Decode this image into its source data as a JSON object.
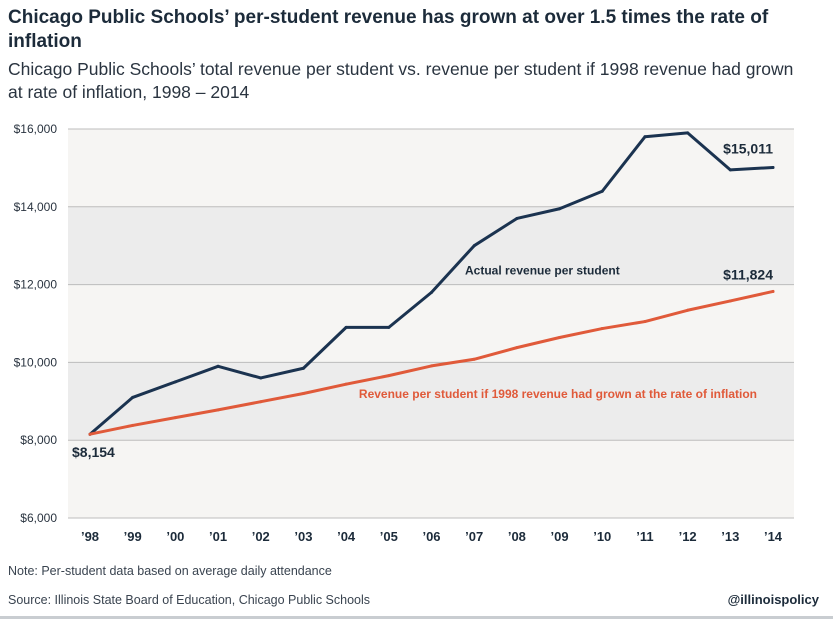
{
  "header": {
    "title": "Chicago Public Schools’ per-student revenue has grown at over 1.5 times the rate of inflation",
    "subtitle": "Chicago Public Schools’ total revenue per student vs. revenue per student if 1998 revenue had grown at rate of inflation, 1998 – 2014"
  },
  "footer": {
    "note": "Note: Per-student data based on average daily attendance",
    "source": "Source: Illinois State Board of Education, Chicago Public Schools",
    "handle": "@illinoispolicy"
  },
  "colors": {
    "actual": "#1b3350",
    "inflation": "#e05a3a",
    "band": "#ececec",
    "band_light": "#f6f5f3",
    "grid": "#bdbdbd"
  },
  "chart_data": {
    "type": "line",
    "title": "Chicago Public Schools’ per-student revenue has grown at over 1.5 times the rate of inflation",
    "xlabel": "",
    "ylabel": "",
    "ylim": [
      6000,
      16000
    ],
    "yticks": [
      6000,
      8000,
      10000,
      12000,
      14000,
      16000
    ],
    "ytick_labels": [
      "$6,000",
      "$8,000",
      "$10,000",
      "$12,000",
      "$14,000",
      "$16,000"
    ],
    "x": [
      1998,
      1999,
      2000,
      2001,
      2002,
      2003,
      2004,
      2005,
      2006,
      2007,
      2008,
      2009,
      2010,
      2011,
      2012,
      2013,
      2014
    ],
    "xtick_labels": [
      "’98",
      "’99",
      "’00",
      "’01",
      "’02",
      "’03",
      "’04",
      "’05",
      "’06",
      "’07",
      "’08",
      "’09",
      "’10",
      "’11",
      "’12",
      "’13",
      "’14"
    ],
    "grid": true,
    "series": [
      {
        "name": "Actual revenue per student",
        "values": [
          8154,
          9100,
          9500,
          9900,
          9600,
          9850,
          10900,
          10900,
          11800,
          13000,
          13700,
          13950,
          14400,
          15800,
          15900,
          14950,
          15011
        ]
      },
      {
        "name": "Revenue per student if 1998 revenue had grown at the rate of inflation",
        "values": [
          8154,
          8380,
          8580,
          8780,
          8990,
          9200,
          9440,
          9660,
          9910,
          10080,
          10380,
          10640,
          10870,
          11050,
          11340,
          11580,
          11824
        ]
      }
    ],
    "annotations": {
      "start": "$8,154",
      "end_actual": "$15,011",
      "end_inflation": "$11,824"
    }
  }
}
